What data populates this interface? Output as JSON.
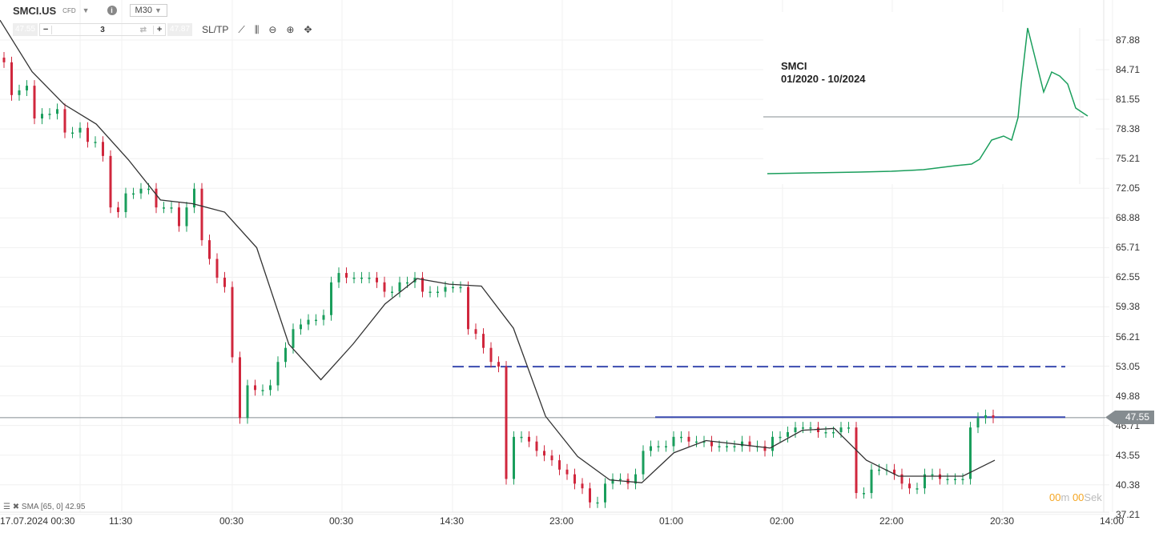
{
  "header": {
    "symbol": "SMCI.US",
    "instrument_type": "CFD",
    "timeframe": "M30",
    "sell_price": "47.55",
    "buy_price": "47.87",
    "quantity": "3",
    "minus_label": "−",
    "plus_label": "+",
    "sltp_label": "SL/TP",
    "icons": [
      "line-chart-icon",
      "candlestick-icon",
      "zoom-out-icon",
      "zoom-in-icon",
      "move-icon"
    ]
  },
  "indicator": {
    "label": "SMA [65, 0] 42.95"
  },
  "timer": {
    "min": "00",
    "min_unit": "m",
    "sec": "00",
    "sec_unit": "Sek"
  },
  "inset": {
    "title_line1": "SMCI",
    "title_line2": "01/2020 - 10/2024"
  },
  "colors": {
    "up": "#1a9e5c",
    "down": "#d0273d",
    "sma": "#333333",
    "level": "#3b4bb0",
    "price_line": "#858c90",
    "timer": "#f5a623"
  },
  "chart_data": {
    "type": "candlestick",
    "current_price": "47.55",
    "y_ticks": [
      "87.88",
      "84.71",
      "81.55",
      "78.38",
      "75.21",
      "72.05",
      "68.88",
      "65.71",
      "62.55",
      "59.38",
      "56.21",
      "53.05",
      "49.88",
      "46.71",
      "43.55",
      "40.38",
      "37.21"
    ],
    "ylim": [
      37.21,
      87.88
    ],
    "x_ticks": [
      "17.07.2024 00:30",
      "11:30",
      "00:30",
      "00:30",
      "14:30",
      "23:00",
      "01:00",
      "02:00",
      "22:00",
      "20:30",
      "14:00"
    ],
    "closes": [
      85.5,
      82,
      82.5,
      83,
      79.5,
      80,
      80,
      80.5,
      78,
      78,
      78.5,
      77,
      77,
      75.5,
      70,
      69.5,
      71.5,
      71.5,
      72,
      72,
      70,
      70,
      70,
      68,
      70,
      72,
      66.5,
      64.5,
      62.5,
      61.5,
      54,
      47.5,
      51,
      50.5,
      50.5,
      51,
      53.5,
      55,
      57,
      57.5,
      58,
      58,
      58.5,
      62,
      63,
      62.5,
      62.5,
      62.5,
      62.5,
      62,
      61,
      61,
      62,
      62,
      62.5,
      61,
      61,
      61,
      61.5,
      61.5,
      61.5,
      57,
      56.5,
      55,
      53.5,
      53,
      41,
      45.5,
      45.5,
      45,
      44,
      43.5,
      43,
      42,
      41.5,
      40.5,
      40,
      38.5,
      38.5,
      40.5,
      41,
      41,
      40.5,
      41.5,
      44,
      44.5,
      44.5,
      44.5,
      45.5,
      45.5,
      45,
      45,
      45,
      44.5,
      44.5,
      44.5,
      44.5,
      45,
      44.5,
      44.5,
      44,
      45.5,
      45.5,
      46,
      46.5,
      46.5,
      46.5,
      46,
      46,
      46,
      46.5,
      46.5,
      39.5,
      39.5,
      42,
      42,
      42,
      41.5,
      40.5,
      40,
      40,
      41.5,
      41.5,
      41,
      41,
      41,
      41,
      46.5,
      47.5,
      47.8,
      47.55
    ],
    "sma": [
      90,
      84.5,
      81,
      78.9,
      75.1,
      70.8,
      70.4,
      69.5,
      65.7,
      55.4,
      51.6,
      55.4,
      59.7,
      62.4,
      61.8,
      61.6,
      57.1,
      47.7,
      43.4,
      40.9,
      40.6,
      43.8,
      45.1,
      44.7,
      44.3,
      46.2,
      46.4,
      43,
      41.3,
      41.3,
      41.3,
      43
    ],
    "levels": [
      {
        "value": 53.0,
        "style": "dashed"
      },
      {
        "value": 47.6,
        "style": "solid"
      }
    ]
  }
}
